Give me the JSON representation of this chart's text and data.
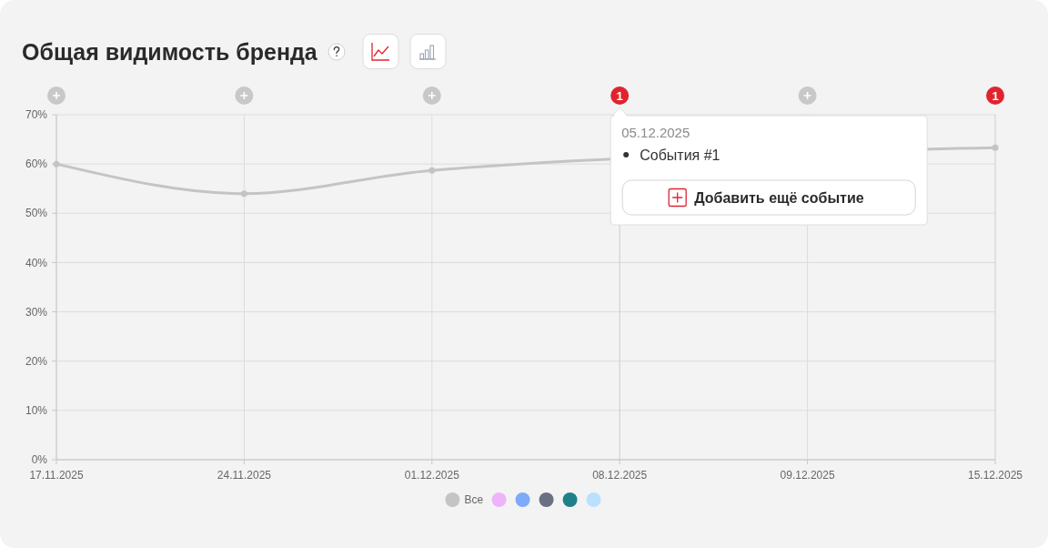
{
  "chart_data": {
    "type": "line",
    "title": "Общая видимость бренда",
    "categories": [
      "17.11.2025",
      "24.11.2025",
      "01.12.2025",
      "08.12.2025",
      "09.12.2025",
      "15.12.2025"
    ],
    "series": [
      {
        "name": "Все",
        "color": "#c4c4c4",
        "values": [
          60,
          54,
          58.7,
          null,
          null,
          63.3
        ]
      },
      {
        "color": "#efb3fa",
        "values": [
          null,
          null,
          null,
          null,
          null,
          null
        ]
      },
      {
        "color": "#7eaaf9",
        "values": [
          null,
          null,
          null,
          null,
          null,
          null
        ]
      },
      {
        "color": "#6b7081",
        "values": [
          null,
          null,
          null,
          null,
          null,
          null
        ]
      },
      {
        "color": "#20808a",
        "values": [
          null,
          null,
          null,
          null,
          null,
          null
        ]
      },
      {
        "color": "#b9e1fc",
        "values": [
          null,
          null,
          null,
          null,
          null,
          null
        ]
      }
    ],
    "ylim": [
      0,
      70
    ],
    "yticks": [
      {
        "value": 0,
        "label": "0%"
      },
      {
        "value": 10,
        "label": "10%"
      },
      {
        "value": 20,
        "label": "20%"
      },
      {
        "value": 30,
        "label": "30%"
      },
      {
        "value": 40,
        "label": "40%"
      },
      {
        "value": 50,
        "label": "50%"
      },
      {
        "value": 60,
        "label": "60%"
      },
      {
        "value": 70,
        "label": "70%"
      }
    ],
    "grid": true,
    "legend": "bottom",
    "marker": "circle",
    "line_style": "solid",
    "ref_lines": [
      {
        "axis": "x",
        "value": "08.12.2025",
        "label": "1",
        "color": "#cccccc"
      },
      {
        "axis": "x",
        "value": "15.12.2025",
        "label": "1",
        "color": "#cccccc"
      }
    ],
    "annotations": [
      "05.12.2025",
      "События #1",
      "Добавить ещё событие"
    ]
  }
}
